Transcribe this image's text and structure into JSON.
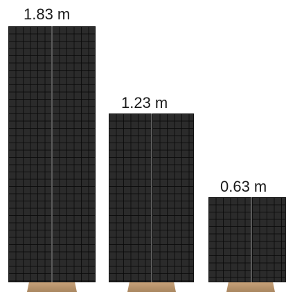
{
  "panels": [
    {
      "height_label": "1.83 m",
      "height_m": 1.83
    },
    {
      "height_label": "1.23 m",
      "height_m": 1.23
    },
    {
      "height_label": "0.63 m",
      "height_m": 0.63
    }
  ]
}
